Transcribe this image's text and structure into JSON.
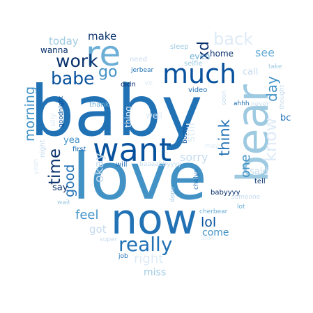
{
  "palette": {
    "background": "#ffffff",
    "darkest": "#08306b",
    "dark": "#08519c",
    "mid_dark": "#2171b5",
    "mid": "#4292c6",
    "light_mid": "#6baed6",
    "light": "#9ecae1",
    "lighter": "#c6dbef",
    "lightest": "#deebf7"
  },
  "words": [
    {
      "id": "baby",
      "text": "baby",
      "color": "#2171b5"
    },
    {
      "id": "love",
      "text": "love",
      "color": "#4292c6"
    },
    {
      "id": "bear",
      "text": "bear",
      "color": "#9ecae1"
    },
    {
      "id": "now",
      "text": "now",
      "color": "#2171b5"
    },
    {
      "id": "want",
      "text": "want",
      "color": "#08519c"
    },
    {
      "id": "re",
      "text": "re",
      "color": "#6baed6"
    },
    {
      "id": "much",
      "text": "much",
      "color": "#08519c"
    },
    {
      "id": "really",
      "text": "really",
      "color": "#2171b5"
    },
    {
      "id": "back",
      "text": "back",
      "color": "#deebf7"
    },
    {
      "id": "babe",
      "text": "babe",
      "color": "#08519c"
    },
    {
      "id": "work",
      "text": "work",
      "color": "#08306b"
    },
    {
      "id": "time",
      "text": "time",
      "color": "#08306b"
    },
    {
      "id": "go",
      "text": "go",
      "color": "#4292c6"
    },
    {
      "id": "think",
      "text": "think",
      "color": "#2171b5"
    },
    {
      "id": "know",
      "text": "know",
      "color": "#deebf7"
    },
    {
      "id": "day",
      "text": "day",
      "color": "#4292c6"
    },
    {
      "id": "xd",
      "text": "xd",
      "color": "#08306b"
    },
    {
      "id": "morning",
      "text": "morning",
      "color": "#4292c6"
    },
    {
      "id": "good",
      "text": "good",
      "color": "#2171b5"
    },
    {
      "id": "okay",
      "text": "okay",
      "color": "#c6dbef"
    },
    {
      "id": "feel",
      "text": "feel",
      "color": "#4292c6"
    },
    {
      "id": "lol",
      "text": "lol",
      "color": "#08519c"
    },
    {
      "id": "right",
      "text": "right",
      "color": "#deebf7"
    },
    {
      "id": "one",
      "text": "one",
      "color": "#4292c6"
    },
    {
      "id": "today",
      "text": "today",
      "color": "#9ecae1"
    },
    {
      "id": "make",
      "text": "make",
      "color": "#08306b"
    },
    {
      "id": "see",
      "text": "see",
      "color": "#6baed6"
    },
    {
      "id": "sorry",
      "text": "sorry",
      "color": "#c6dbef"
    },
    {
      "id": "still",
      "text": "still",
      "color": "#deebf7"
    },
    {
      "id": "come",
      "text": "come",
      "color": "#4292c6"
    },
    {
      "id": "got",
      "text": "got",
      "color": "#c6dbef"
    },
    {
      "id": "miss",
      "text": "miss",
      "color": "#9ecae1"
    },
    {
      "id": "wanna",
      "text": "wanna",
      "color": "#08306b"
    },
    {
      "id": "home",
      "text": "home",
      "color": "#08306b"
    },
    {
      "id": "call",
      "text": "call",
      "color": "#c6dbef"
    },
    {
      "id": "even",
      "text": "even",
      "color": "#6baed6"
    },
    {
      "id": "say",
      "text": "say",
      "color": "#08306b"
    },
    {
      "id": "yea",
      "text": "yea",
      "color": "#4292c6"
    },
    {
      "id": "bc",
      "text": "bc",
      "color": "#2171b5"
    },
    {
      "id": "said",
      "text": "said",
      "color": "#c6dbef"
    },
    {
      "id": "thing",
      "text": "thing",
      "color": "#deebf7"
    },
    {
      "id": "well",
      "text": "well",
      "color": "#deebf7"
    },
    {
      "id": "sleep",
      "text": "sleep",
      "color": "#9ecae1"
    },
    {
      "id": "need",
      "text": "need",
      "color": "#c6dbef"
    },
    {
      "id": "selfie",
      "text": "selfie",
      "color": "#9ecae1"
    },
    {
      "id": "jerbear",
      "text": "jerbear",
      "color": "#2171b5"
    },
    {
      "id": "take",
      "text": "take",
      "color": "#9ecae1"
    },
    {
      "id": "didn",
      "text": "didn",
      "color": "#08306b"
    },
    {
      "id": "ve",
      "text": "ve",
      "color": "#deebf7"
    },
    {
      "id": "video",
      "text": "video",
      "color": "#2171b5"
    },
    {
      "id": "soon",
      "text": "soon",
      "color": "#c6dbef"
    },
    {
      "id": "ahhh",
      "text": "ahhh",
      "color": "#2171b5"
    },
    {
      "id": "never",
      "text": "never",
      "color": "#c6dbef"
    },
    {
      "id": "thought",
      "text": "thought",
      "color": "#c6dbef"
    },
    {
      "id": "thank",
      "text": "thank",
      "color": "#6baed6"
    },
    {
      "id": "goodnight",
      "text": "goodnight",
      "color": "#08519c"
    },
    {
      "id": "silly",
      "text": "silly",
      "color": "#deebf7"
    },
    {
      "id": "night",
      "text": "night",
      "color": "#c6dbef"
    },
    {
      "id": "yeah",
      "text": "yeah",
      "color": "#deebf7"
    },
    {
      "id": "first",
      "text": "first",
      "color": "#2171b5"
    },
    {
      "id": "will",
      "text": "will",
      "color": "#2171b5"
    },
    {
      "id": "baaaabbyyyy",
      "text": "baaaabbyyyy",
      "color": "#c6dbef"
    },
    {
      "id": "boston",
      "text": "boston",
      "color": "#08519c"
    },
    {
      "id": "may",
      "text": "may",
      "color": "#deebf7"
    },
    {
      "id": "tell",
      "text": "tell",
      "color": "#08306b"
    },
    {
      "id": "babyyyy",
      "text": "babyyyy",
      "color": "#08306b"
    },
    {
      "id": "chelyn",
      "text": "chelyn",
      "color": "#2171b5"
    },
    {
      "id": "wait",
      "text": "wait",
      "color": "#9ecae1"
    },
    {
      "id": "done",
      "text": "done",
      "color": "#9ecae1"
    },
    {
      "id": "someone",
      "text": "someone",
      "color": "#c6dbef"
    },
    {
      "id": "lot",
      "text": "lot",
      "color": "#6baed6"
    },
    {
      "id": "cherbear",
      "text": "cherbear",
      "color": "#6baed6"
    },
    {
      "id": "look",
      "text": "look",
      "color": "#deebf7"
    },
    {
      "id": "super",
      "text": "super",
      "color": "#c6dbef"
    },
    {
      "id": "job",
      "text": "job",
      "color": "#2171b5"
    }
  ]
}
